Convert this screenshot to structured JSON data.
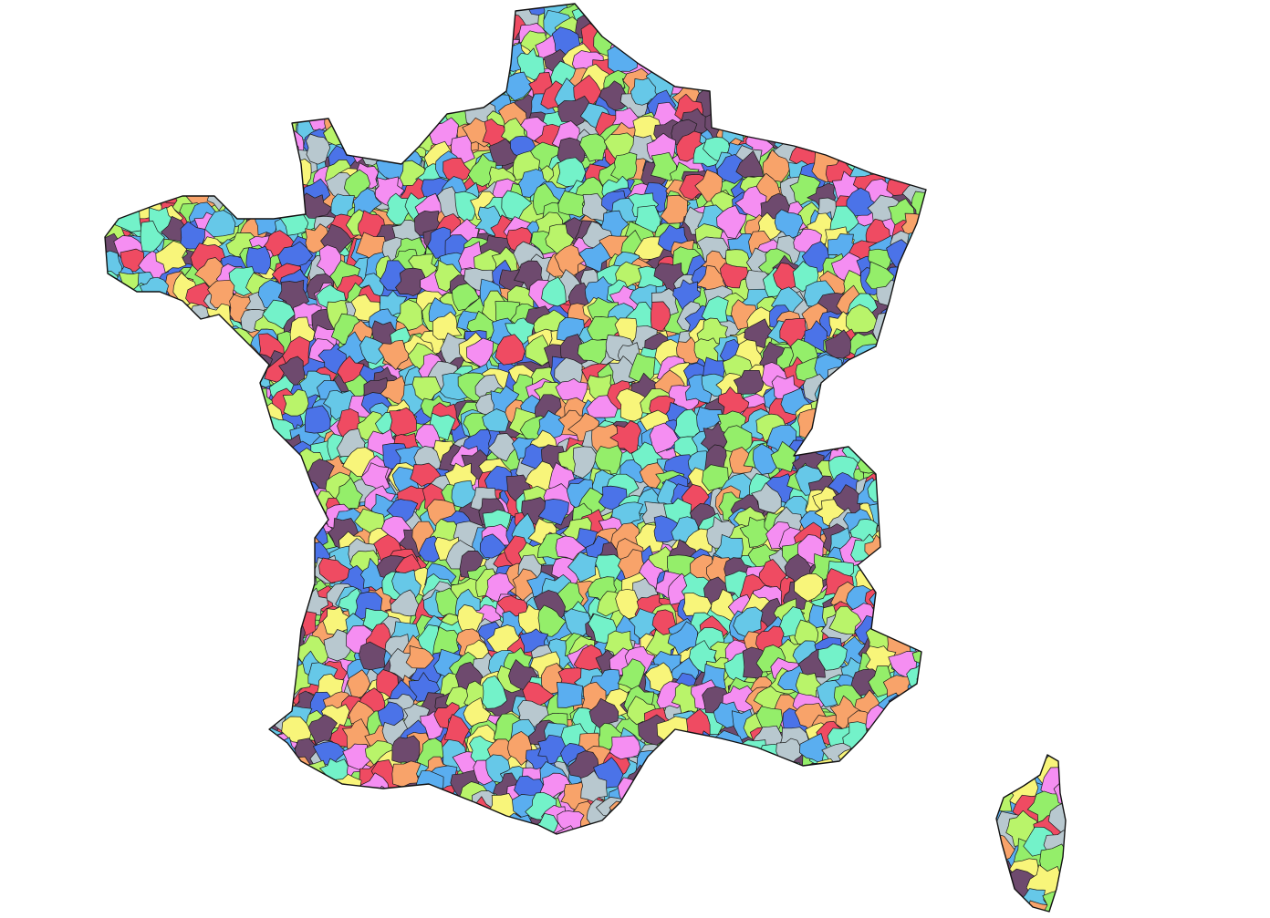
{
  "map": {
    "palette": [
      "#5aaef0",
      "#94ee6a",
      "#73f2c9",
      "#f8f57a",
      "#f8a36a",
      "#f58ef2",
      "#4b73e8",
      "#b8c8cf",
      "#6e4a6e",
      "#ef4b62",
      "#66c8e8",
      "#b9f46a"
    ],
    "border_color": "#1a1a1a",
    "background": "#ffffff",
    "islands": [
      "mainland",
      "corsica"
    ]
  }
}
